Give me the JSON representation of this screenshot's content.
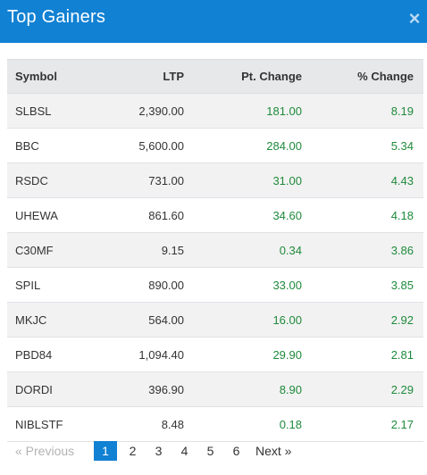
{
  "header": {
    "title": "Top Gainers",
    "close_label": "×"
  },
  "table": {
    "columns": [
      "Symbol",
      "LTP",
      "Pt. Change",
      "% Change"
    ],
    "rows": [
      {
        "symbol": "SLBSL",
        "ltp": "2,390.00",
        "pt_change": "181.00",
        "pct_change": "8.19"
      },
      {
        "symbol": "BBC",
        "ltp": "5,600.00",
        "pt_change": "284.00",
        "pct_change": "5.34"
      },
      {
        "symbol": "RSDC",
        "ltp": "731.00",
        "pt_change": "31.00",
        "pct_change": "4.43"
      },
      {
        "symbol": "UHEWA",
        "ltp": "861.60",
        "pt_change": "34.60",
        "pct_change": "4.18"
      },
      {
        "symbol": "C30MF",
        "ltp": "9.15",
        "pt_change": "0.34",
        "pct_change": "3.86"
      },
      {
        "symbol": "SPIL",
        "ltp": "890.00",
        "pt_change": "33.00",
        "pct_change": "3.85"
      },
      {
        "symbol": "MKJC",
        "ltp": "564.00",
        "pt_change": "16.00",
        "pct_change": "2.92"
      },
      {
        "symbol": "PBD84",
        "ltp": "1,094.40",
        "pt_change": "29.90",
        "pct_change": "2.81"
      },
      {
        "symbol": "DORDI",
        "ltp": "396.90",
        "pt_change": "8.90",
        "pct_change": "2.29"
      },
      {
        "symbol": "NIBLSTF",
        "ltp": "8.48",
        "pt_change": "0.18",
        "pct_change": "2.17"
      }
    ]
  },
  "pagination": {
    "previous_label": "«  Previous",
    "pages": [
      "1",
      "2",
      "3",
      "4",
      "5",
      "6"
    ],
    "active_page": "1",
    "next_label": "Next  »"
  },
  "colors": {
    "header_bg": "#1181d3",
    "positive": "#1f8a3b",
    "active_page_bg": "#1181d3"
  }
}
